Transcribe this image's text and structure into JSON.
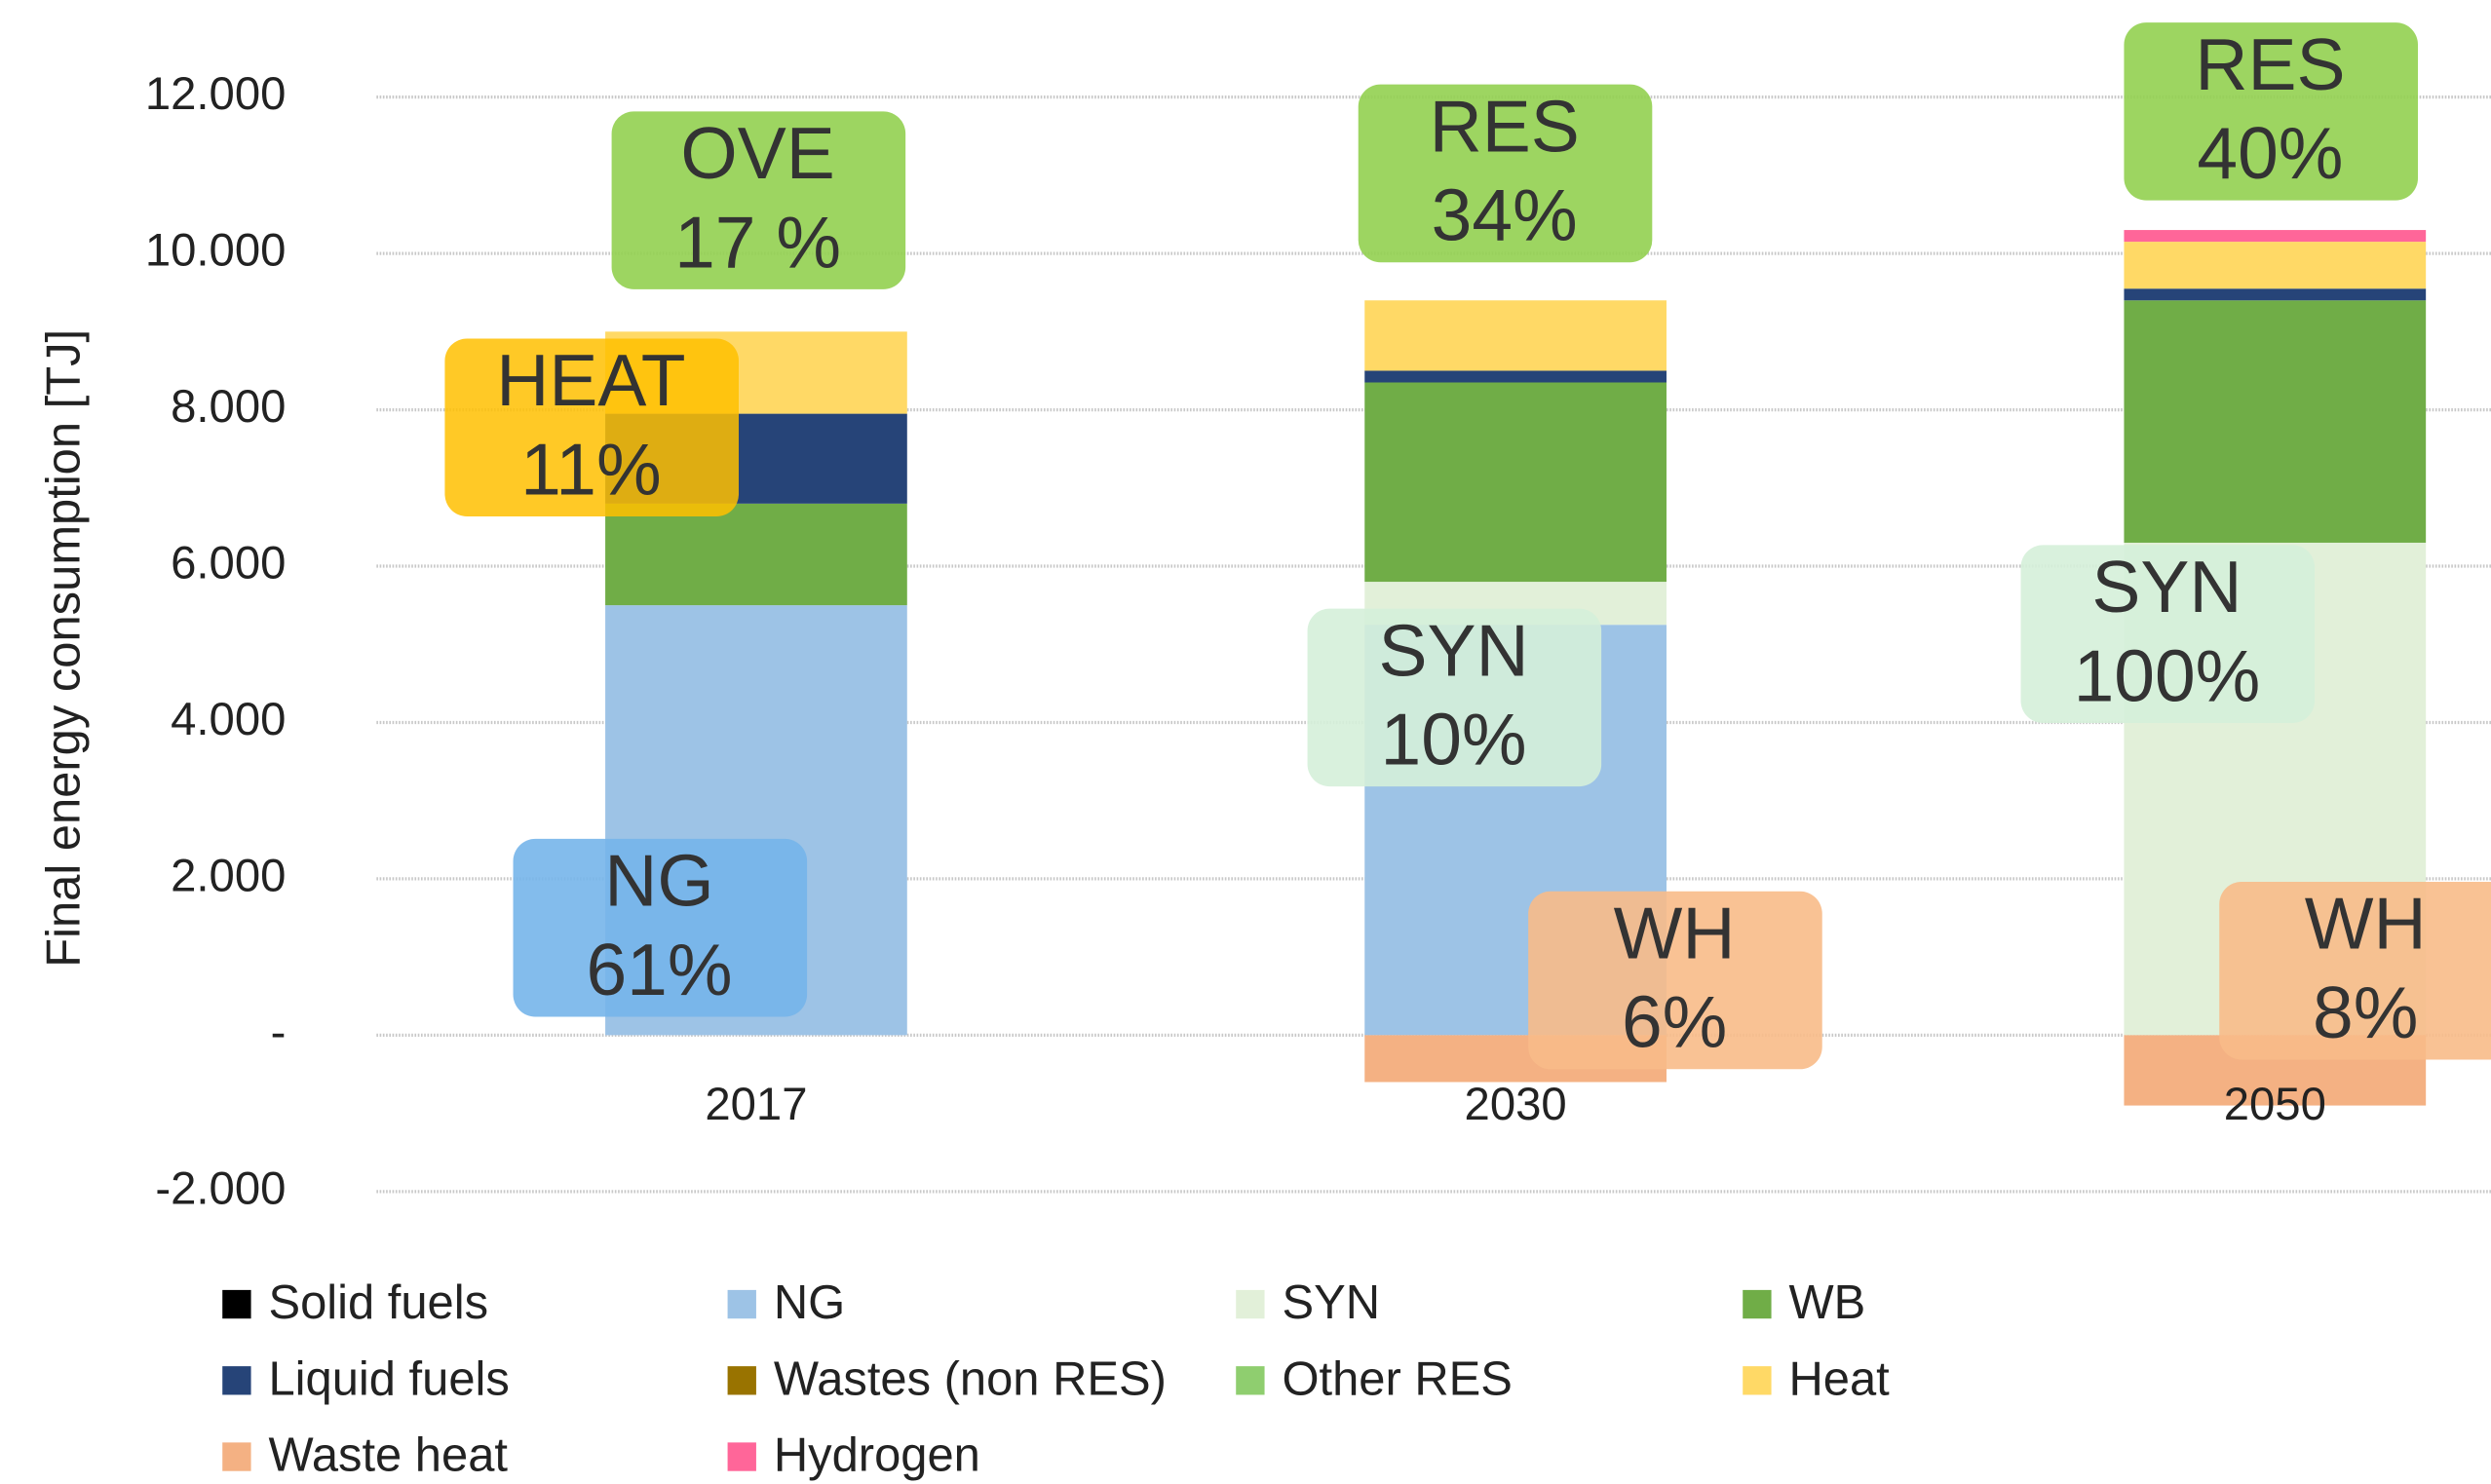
{
  "chart_data": {
    "type": "stacked-bar",
    "y_label": "Final energy consumption [TJ]",
    "categories": [
      "2017",
      "2030",
      "2050"
    ],
    "ylim": [
      -2000,
      12000
    ],
    "yticks": [
      {
        "value": -2000,
        "label": "-2.000"
      },
      {
        "value": 0,
        "label": "-"
      },
      {
        "value": 2000,
        "label": "2.000"
      },
      {
        "value": 4000,
        "label": "4.000"
      },
      {
        "value": 6000,
        "label": "6.000"
      },
      {
        "value": 8000,
        "label": "8.000"
      },
      {
        "value": 10000,
        "label": "10.000"
      },
      {
        "value": 12000,
        "label": "12.000"
      }
    ],
    "grid": true,
    "legend": "bottom",
    "series": [
      {
        "name": "Solid fuels",
        "color": "#000000",
        "values": [
          0,
          0,
          0
        ]
      },
      {
        "name": "NG",
        "color": "#9dc3e6",
        "values": [
          5500,
          5250,
          0
        ]
      },
      {
        "name": "SYN",
        "color": "#e2f0d9",
        "values": [
          0,
          550,
          6300
        ]
      },
      {
        "name": "WB",
        "color": "#70ad47",
        "values": [
          1300,
          2550,
          3100
        ]
      },
      {
        "name": "Liquid fuels",
        "color": "#264478",
        "values": [
          1150,
          150,
          150
        ]
      },
      {
        "name": "Wastes (non RES)",
        "color": "#997300",
        "values": [
          0,
          0,
          0
        ]
      },
      {
        "name": "Other RES",
        "color": "#8fce6f",
        "values": [
          0,
          0,
          0
        ]
      },
      {
        "name": "Heat",
        "color": "#ffd966",
        "values": [
          1050,
          900,
          600
        ]
      },
      {
        "name": "Waste heat",
        "color": "#f4b183",
        "values": [
          0,
          -600,
          -900
        ]
      },
      {
        "name": "Hydrogen",
        "color": "#ff6699",
        "values": [
          0,
          0,
          150
        ]
      }
    ],
    "annotations": [
      {
        "lines": [
          "OVE",
          "17 %"
        ],
        "color": "#92d050"
      },
      {
        "lines": [
          "HEAT",
          "11%"
        ],
        "color": "#ffc000"
      },
      {
        "lines": [
          "NG",
          "61%"
        ],
        "color": "#75b5ea"
      },
      {
        "lines": [
          "RES",
          "34%"
        ],
        "color": "#92d050"
      },
      {
        "lines": [
          "SYN",
          "10%"
        ],
        "color": "#d5f0d9"
      },
      {
        "lines": [
          "WH",
          "6%"
        ],
        "color": "#f8bb88"
      },
      {
        "lines": [
          "RES",
          "40%"
        ],
        "color": "#92d050"
      },
      {
        "lines": [
          "SYN",
          "100%"
        ],
        "color": "#d5f0d9"
      },
      {
        "lines": [
          "WH",
          "8%"
        ],
        "color": "#f8bb88"
      }
    ]
  }
}
